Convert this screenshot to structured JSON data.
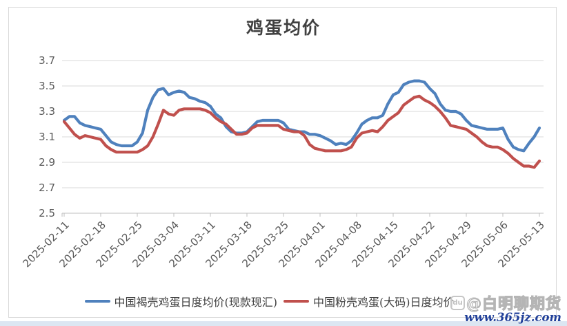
{
  "chart": {
    "title": "鸡蛋均价"
  },
  "watermark": {
    "icon_text": "du",
    "handle": "@白明聊期货",
    "url": "www.365jz.com"
  },
  "chart_data": {
    "type": "line",
    "title": "鸡蛋均价",
    "xlabel": "",
    "ylabel": "",
    "ylim": [
      2.5,
      3.7
    ],
    "y_ticks": [
      3.7,
      3.5,
      3.3,
      3.1,
      2.9,
      2.7,
      2.5
    ],
    "x_tick_labels": [
      "2025-02-11",
      "2025-02-18",
      "2025-02-25",
      "2025-03-04",
      "2025-03-11",
      "2025-03-18",
      "2025-03-25",
      "2025-04-01",
      "2025-04-08",
      "2025-04-15",
      "2025-04-22",
      "2025-04-29",
      "2025-05-06",
      "2025-05-13"
    ],
    "x_frequency": "daily",
    "n_points": 92,
    "grid": "horizontal",
    "grid_color": "#D9D9D9",
    "axis_color": "#BFBFBF",
    "tick_label_color": "#595959",
    "legend_position": "bottom",
    "series": [
      {
        "name": "中国褐壳鸡蛋日度均价(现款现汇)",
        "color": "#4F81BD",
        "values": [
          3.23,
          3.26,
          3.26,
          3.21,
          3.19,
          3.18,
          3.17,
          3.16,
          3.11,
          3.06,
          3.04,
          3.03,
          3.03,
          3.03,
          3.06,
          3.13,
          3.31,
          3.41,
          3.47,
          3.48,
          3.43,
          3.45,
          3.46,
          3.45,
          3.41,
          3.4,
          3.38,
          3.37,
          3.34,
          3.28,
          3.25,
          3.18,
          3.14,
          3.13,
          3.13,
          3.14,
          3.18,
          3.22,
          3.23,
          3.23,
          3.23,
          3.23,
          3.21,
          3.16,
          3.15,
          3.14,
          3.14,
          3.12,
          3.12,
          3.11,
          3.09,
          3.07,
          3.04,
          3.05,
          3.04,
          3.07,
          3.13,
          3.2,
          3.23,
          3.25,
          3.25,
          3.27,
          3.36,
          3.43,
          3.45,
          3.51,
          3.53,
          3.54,
          3.54,
          3.53,
          3.48,
          3.44,
          3.36,
          3.31,
          3.3,
          3.3,
          3.28,
          3.23,
          3.19,
          3.18,
          3.17,
          3.16,
          3.16,
          3.16,
          3.17,
          3.08,
          3.02,
          3.0,
          2.99,
          3.05,
          3.1,
          3.17
        ]
      },
      {
        "name": "中国粉壳鸡蛋(大码)日度均价",
        "color": "#C0504D",
        "values": [
          3.22,
          3.17,
          3.12,
          3.09,
          3.11,
          3.1,
          3.09,
          3.08,
          3.03,
          3.0,
          2.98,
          2.98,
          2.98,
          2.98,
          2.98,
          3.0,
          3.03,
          3.1,
          3.2,
          3.31,
          3.28,
          3.27,
          3.31,
          3.32,
          3.32,
          3.32,
          3.32,
          3.31,
          3.29,
          3.25,
          3.22,
          3.2,
          3.16,
          3.12,
          3.12,
          3.13,
          3.17,
          3.19,
          3.19,
          3.19,
          3.19,
          3.19,
          3.16,
          3.15,
          3.14,
          3.14,
          3.11,
          3.04,
          3.01,
          3.0,
          2.99,
          2.99,
          2.99,
          2.99,
          3.0,
          3.02,
          3.09,
          3.13,
          3.14,
          3.15,
          3.14,
          3.18,
          3.23,
          3.26,
          3.29,
          3.35,
          3.38,
          3.41,
          3.42,
          3.39,
          3.37,
          3.34,
          3.3,
          3.25,
          3.19,
          3.18,
          3.17,
          3.16,
          3.13,
          3.1,
          3.06,
          3.03,
          3.02,
          3.02,
          3.0,
          2.97,
          2.93,
          2.9,
          2.87,
          2.87,
          2.86,
          2.91
        ]
      }
    ]
  }
}
